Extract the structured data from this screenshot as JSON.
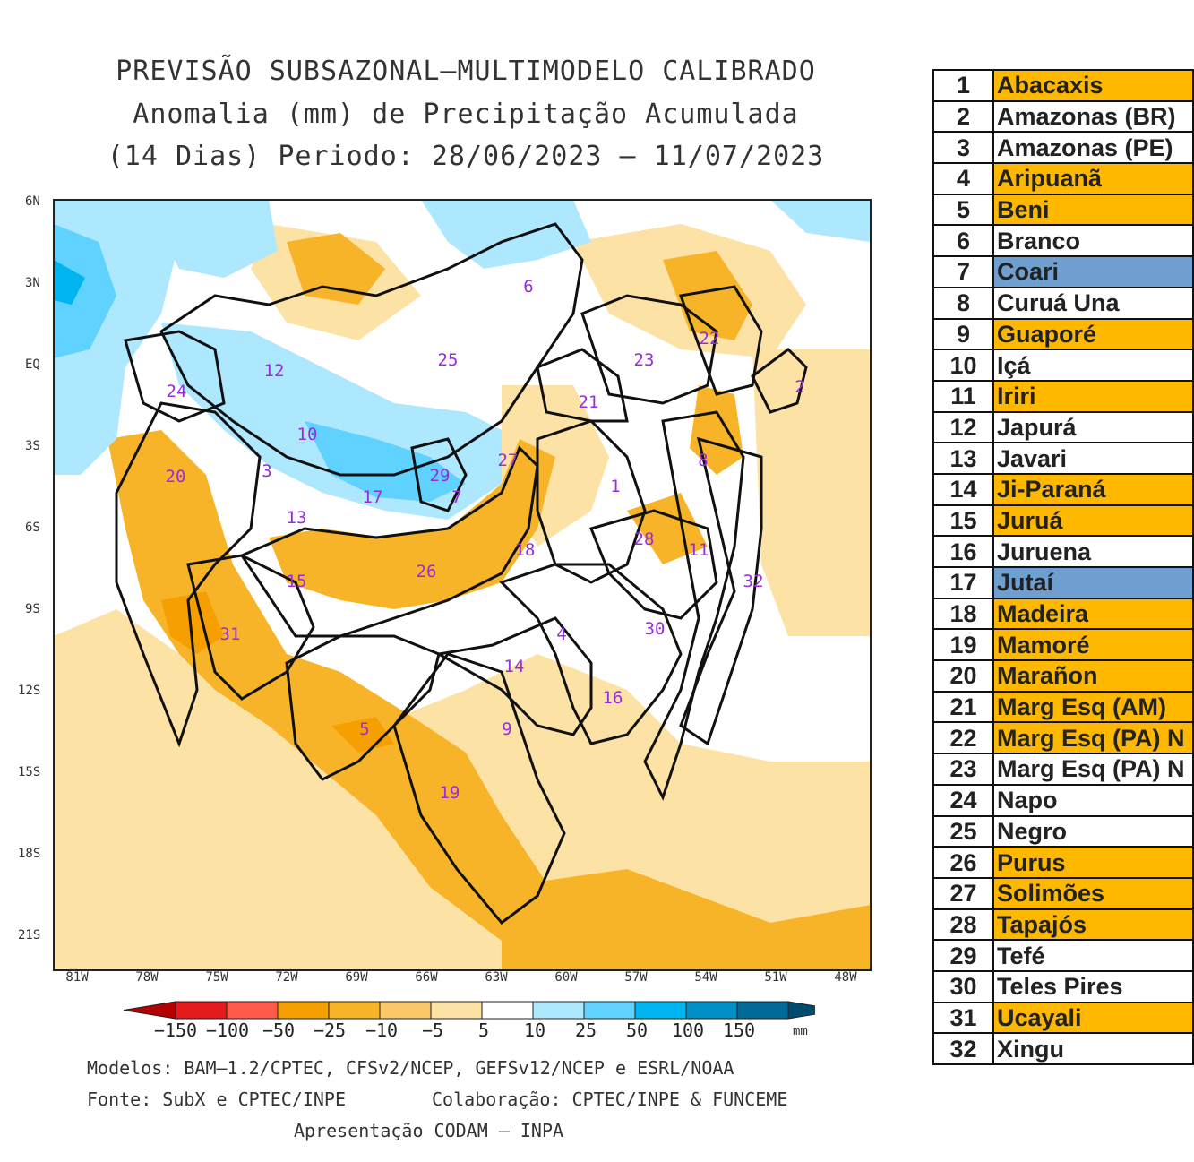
{
  "title": {
    "line1": "PREVISÃO SUBSAZONAL—MULTIMODELO CALIBRADO",
    "line2": "Anomalia (mm) de Precipitação Acumulada",
    "line3": "(14 Dias) Periodo: 28/06/2023 – 11/07/2023"
  },
  "axes": {
    "lat_labels": [
      "6N",
      "3N",
      "EQ",
      "3S",
      "6S",
      "9S",
      "12S",
      "15S",
      "18S",
      "21S"
    ],
    "lon_labels": [
      "81W",
      "78W",
      "75W",
      "72W",
      "69W",
      "66W",
      "63W",
      "60W",
      "57W",
      "54W",
      "51W",
      "48W"
    ]
  },
  "colorbar": {
    "ticks": [
      "−150",
      "−100",
      "−50",
      "−25",
      "−10",
      "−5",
      "5",
      "10",
      "25",
      "50",
      "100",
      "150"
    ],
    "unit": "mm",
    "colors": [
      "#b40000",
      "#e41a1c",
      "#ff5a4a",
      "#f5a000",
      "#f8b428",
      "#fbc868",
      "#fde2a6",
      "#ffffff",
      "#aee8ff",
      "#5fd2ff",
      "#00b4f0",
      "#0090c8",
      "#006a98",
      "#004a70"
    ]
  },
  "basin_numbers": [
    "1",
    "2",
    "3",
    "4",
    "5",
    "6",
    "7",
    "8",
    "9",
    "10",
    "11",
    "12",
    "13",
    "14",
    "15",
    "16",
    "17",
    "18",
    "19",
    "20",
    "21",
    "22",
    "23",
    "24",
    "25",
    "26",
    "27",
    "28",
    "29",
    "30",
    "31",
    "32"
  ],
  "footer": {
    "models": "Modelos: BAM–1.2/CPTEC, CFSv2/NCEP, GEFSv12/NCEP e ESRL/NOAA",
    "source": "Fonte: SubX e CPTEC/INPE",
    "collab": "Colaboração: CPTEC/INPE & FUNCEME",
    "presentation": "Apresentação CODAM – INPA"
  },
  "table": {
    "colors": {
      "orange": "#ffb800",
      "blue": "#6f9fd0",
      "white": "#ffffff"
    },
    "rows": [
      {
        "n": "1",
        "name": "Abacaxis",
        "c": "orange"
      },
      {
        "n": "2",
        "name": "Amazonas (BR)",
        "c": "white"
      },
      {
        "n": "3",
        "name": "Amazonas (PE)",
        "c": "white"
      },
      {
        "n": "4",
        "name": "Aripuanã",
        "c": "orange"
      },
      {
        "n": "5",
        "name": "Beni",
        "c": "orange"
      },
      {
        "n": "6",
        "name": "Branco",
        "c": "white"
      },
      {
        "n": "7",
        "name": "Coari",
        "c": "blue"
      },
      {
        "n": "8",
        "name": "Curuá Una",
        "c": "white"
      },
      {
        "n": "9",
        "name": "Guaporé",
        "c": "orange"
      },
      {
        "n": "10",
        "name": "Içá",
        "c": "white"
      },
      {
        "n": "11",
        "name": "Iriri",
        "c": "orange"
      },
      {
        "n": "12",
        "name": "Japurá",
        "c": "white"
      },
      {
        "n": "13",
        "name": "Javari",
        "c": "white"
      },
      {
        "n": "14",
        "name": "Ji-Paraná",
        "c": "orange"
      },
      {
        "n": "15",
        "name": "Juruá",
        "c": "orange"
      },
      {
        "n": "16",
        "name": "Juruena",
        "c": "white"
      },
      {
        "n": "17",
        "name": "Jutaí",
        "c": "blue"
      },
      {
        "n": "18",
        "name": "Madeira",
        "c": "orange"
      },
      {
        "n": "19",
        "name": "Mamoré",
        "c": "orange"
      },
      {
        "n": "20",
        "name": "Marañon",
        "c": "orange"
      },
      {
        "n": "21",
        "name": "Marg Esq (AM)",
        "c": "orange"
      },
      {
        "n": "22",
        "name": "Marg Esq (PA) N",
        "c": "orange"
      },
      {
        "n": "23",
        "name": "Marg Esq (PA) N",
        "c": "white"
      },
      {
        "n": "24",
        "name": "Napo",
        "c": "white"
      },
      {
        "n": "25",
        "name": "Negro",
        "c": "white"
      },
      {
        "n": "26",
        "name": "Purus",
        "c": "orange"
      },
      {
        "n": "27",
        "name": "Solimões",
        "c": "orange"
      },
      {
        "n": "28",
        "name": "Tapajós",
        "c": "orange"
      },
      {
        "n": "29",
        "name": "Tefé",
        "c": "white"
      },
      {
        "n": "30",
        "name": "Teles Pires",
        "c": "white"
      },
      {
        "n": "31",
        "name": "Ucayali",
        "c": "orange"
      },
      {
        "n": "32",
        "name": "Xingu",
        "c": "white"
      }
    ]
  }
}
